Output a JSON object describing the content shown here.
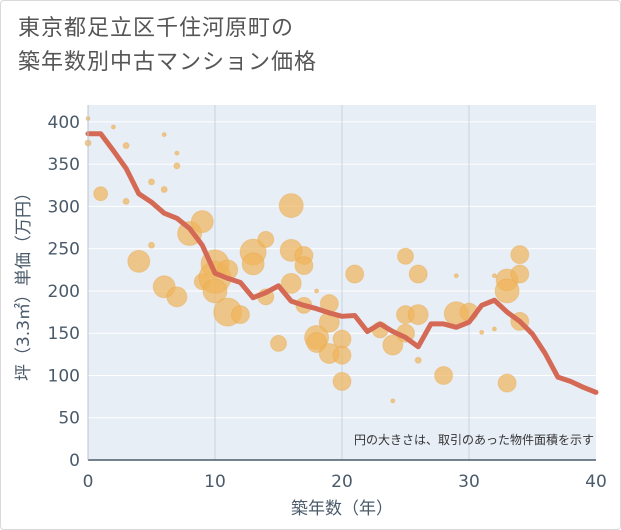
{
  "title_lines": [
    "東京都足立区千住河原町の",
    "築年数別中古マンション価格"
  ],
  "chart_data": {
    "type": "scatter",
    "xlabel": "築年数（年）",
    "ylabel": "坪（3.3㎡）単価（万円）",
    "xlim": [
      0,
      40
    ],
    "ylim": [
      0,
      420
    ],
    "xticks": [
      0,
      10,
      20,
      30,
      40
    ],
    "yticks": [
      0,
      50,
      100,
      150,
      200,
      250,
      300,
      350,
      400
    ],
    "grid": true,
    "annotation": "円の大きさは、取引のあった物件面積を示す",
    "colors": {
      "bubble": "#f0b45a",
      "line": "#d46a55",
      "axis": "#4a5a6a",
      "grid": "#c8d4e0",
      "bg": "#e8eef6"
    },
    "series": [
      {
        "kind": "line",
        "x": [
          0,
          1,
          2,
          3,
          4,
          5,
          6,
          7,
          8,
          9,
          10,
          11,
          12,
          13,
          14,
          15,
          16,
          17,
          18,
          19,
          20,
          21,
          22,
          23,
          24,
          25,
          26,
          27,
          28,
          29,
          30,
          31,
          32,
          33,
          34,
          35,
          36,
          37,
          38,
          39,
          40
        ],
        "y": [
          386,
          386,
          366,
          345,
          315,
          305,
          292,
          286,
          274,
          254,
          221,
          215,
          210,
          192,
          198,
          206,
          188,
          183,
          179,
          174,
          170,
          171,
          152,
          161,
          152,
          145,
          134,
          161,
          161,
          157,
          163,
          183,
          189,
          175,
          164,
          149,
          126,
          98,
          93,
          86,
          80
        ]
      },
      {
        "kind": "bubble",
        "points": [
          {
            "x": 0,
            "y": 404,
            "s": 2
          },
          {
            "x": 0,
            "y": 375,
            "s": 3
          },
          {
            "x": 1,
            "y": 315,
            "s": 7
          },
          {
            "x": 2,
            "y": 394,
            "s": 2
          },
          {
            "x": 3,
            "y": 372,
            "s": 3
          },
          {
            "x": 3,
            "y": 306,
            "s": 3
          },
          {
            "x": 4,
            "y": 235,
            "s": 11
          },
          {
            "x": 5,
            "y": 329,
            "s": 3
          },
          {
            "x": 5,
            "y": 254,
            "s": 3
          },
          {
            "x": 6,
            "y": 385,
            "s": 2
          },
          {
            "x": 6,
            "y": 320,
            "s": 3
          },
          {
            "x": 6,
            "y": 205,
            "s": 11
          },
          {
            "x": 7,
            "y": 363,
            "s": 2
          },
          {
            "x": 7,
            "y": 348,
            "s": 3
          },
          {
            "x": 7,
            "y": 193,
            "s": 10
          },
          {
            "x": 8,
            "y": 268,
            "s": 12
          },
          {
            "x": 9,
            "y": 282,
            "s": 11
          },
          {
            "x": 9,
            "y": 211,
            "s": 8
          },
          {
            "x": 10,
            "y": 232,
            "s": 14
          },
          {
            "x": 10,
            "y": 216,
            "s": 16
          },
          {
            "x": 10,
            "y": 200,
            "s": 12
          },
          {
            "x": 11,
            "y": 225,
            "s": 10
          },
          {
            "x": 11,
            "y": 175,
            "s": 14
          },
          {
            "x": 12,
            "y": 172,
            "s": 9
          },
          {
            "x": 13,
            "y": 246,
            "s": 13
          },
          {
            "x": 13,
            "y": 232,
            "s": 11
          },
          {
            "x": 14,
            "y": 261,
            "s": 8
          },
          {
            "x": 14,
            "y": 193,
            "s": 8
          },
          {
            "x": 15,
            "y": 138,
            "s": 8
          },
          {
            "x": 16,
            "y": 301,
            "s": 12
          },
          {
            "x": 16,
            "y": 248,
            "s": 11
          },
          {
            "x": 16,
            "y": 209,
            "s": 10
          },
          {
            "x": 17,
            "y": 242,
            "s": 9
          },
          {
            "x": 17,
            "y": 230,
            "s": 9
          },
          {
            "x": 17,
            "y": 183,
            "s": 8
          },
          {
            "x": 18,
            "y": 200,
            "s": 2
          },
          {
            "x": 18,
            "y": 145,
            "s": 12
          },
          {
            "x": 18,
            "y": 139,
            "s": 10
          },
          {
            "x": 19,
            "y": 185,
            "s": 9
          },
          {
            "x": 19,
            "y": 163,
            "s": 10
          },
          {
            "x": 19,
            "y": 126,
            "s": 10
          },
          {
            "x": 20,
            "y": 143,
            "s": 9
          },
          {
            "x": 20,
            "y": 124,
            "s": 9
          },
          {
            "x": 20,
            "y": 93,
            "s": 9
          },
          {
            "x": 21,
            "y": 220,
            "s": 9
          },
          {
            "x": 23,
            "y": 154,
            "s": 8
          },
          {
            "x": 24,
            "y": 136,
            "s": 10
          },
          {
            "x": 24,
            "y": 70,
            "s": 2
          },
          {
            "x": 25,
            "y": 241,
            "s": 8
          },
          {
            "x": 25,
            "y": 172,
            "s": 9
          },
          {
            "x": 25,
            "y": 150,
            "s": 9
          },
          {
            "x": 26,
            "y": 220,
            "s": 9
          },
          {
            "x": 26,
            "y": 172,
            "s": 10
          },
          {
            "x": 26,
            "y": 118,
            "s": 3
          },
          {
            "x": 28,
            "y": 100,
            "s": 9
          },
          {
            "x": 29,
            "y": 218,
            "s": 2
          },
          {
            "x": 29,
            "y": 173,
            "s": 12
          },
          {
            "x": 30,
            "y": 175,
            "s": 9
          },
          {
            "x": 31,
            "y": 151,
            "s": 2
          },
          {
            "x": 32,
            "y": 218,
            "s": 2
          },
          {
            "x": 32,
            "y": 155,
            "s": 2
          },
          {
            "x": 33,
            "y": 213,
            "s": 11
          },
          {
            "x": 33,
            "y": 200,
            "s": 12
          },
          {
            "x": 33,
            "y": 91,
            "s": 9
          },
          {
            "x": 34,
            "y": 243,
            "s": 9
          },
          {
            "x": 34,
            "y": 220,
            "s": 9
          },
          {
            "x": 34,
            "y": 164,
            "s": 9
          }
        ]
      }
    ]
  }
}
